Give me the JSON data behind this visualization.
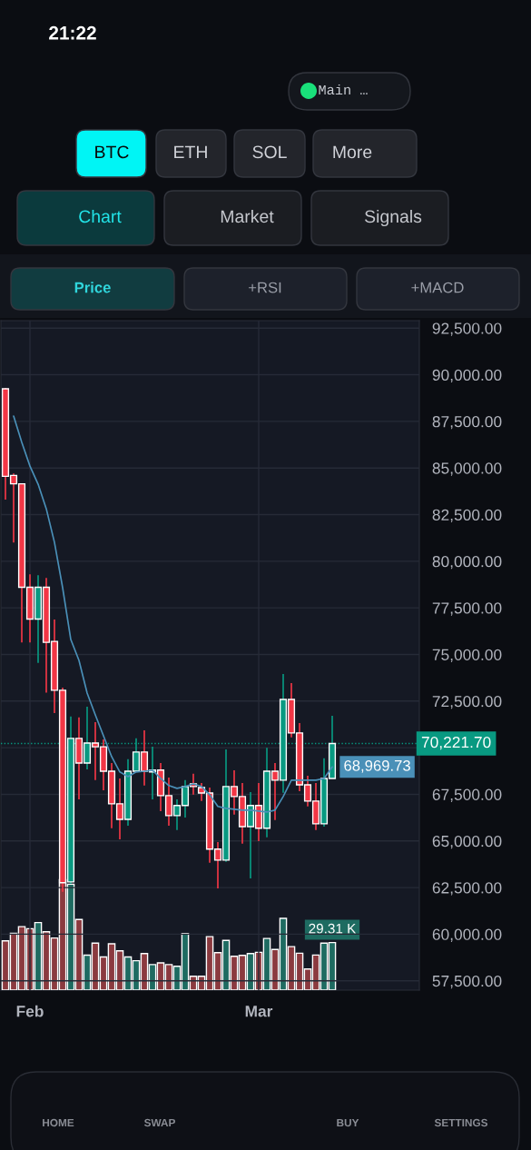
{
  "chart_data": [
    {
      "type": "candlestick",
      "categories": [
        null,
        null,
        null,
        "Feb",
        null,
        null,
        null,
        null,
        null,
        null,
        null,
        null,
        null,
        null,
        null,
        null,
        null,
        null,
        null,
        null,
        null,
        null,
        null,
        null,
        null,
        null,
        null,
        null,
        null,
        null,
        null,
        "Mar",
        null,
        null,
        null,
        null,
        null,
        null,
        null,
        null,
        null
      ],
      "ohlc": [
        [
          89250,
          89300,
          83300,
          84550
        ],
        [
          84600,
          84700,
          81000,
          84150
        ],
        [
          84150,
          84150,
          75650,
          78600
        ],
        [
          78600,
          79300,
          75650,
          76900
        ],
        [
          76900,
          79250,
          74550,
          78600
        ],
        [
          78600,
          79100,
          72950,
          75650
        ],
        [
          75700,
          76880,
          71860,
          73080
        ],
        [
          73080,
          73220,
          62270,
          62760
        ],
        [
          62800,
          71670,
          62700,
          70500
        ],
        [
          70500,
          71620,
          67230,
          69180
        ],
        [
          69180,
          72200,
          68840,
          70250
        ],
        [
          70250,
          71370,
          68260,
          70050
        ],
        [
          70050,
          70450,
          67720,
          68740
        ],
        [
          68740,
          69180,
          65680,
          66990
        ],
        [
          66990,
          68350,
          65090,
          66160
        ],
        [
          66160,
          69380,
          65820,
          68740
        ],
        [
          68740,
          70500,
          68700,
          69770
        ],
        [
          69770,
          70930,
          67970,
          68740
        ],
        [
          68700,
          70060,
          67230,
          68800
        ],
        [
          68800,
          69180,
          66600,
          67430
        ],
        [
          67430,
          68400,
          65820,
          66360
        ],
        [
          66360,
          67230,
          65580,
          66900
        ],
        [
          66900,
          68260,
          66260,
          67920
        ],
        [
          68060,
          68600,
          67480,
          67920
        ],
        [
          67860,
          68110,
          67140,
          67570
        ],
        [
          67570,
          67860,
          63830,
          64560
        ],
        [
          64560,
          64940,
          62460,
          63970
        ],
        [
          63970,
          69910,
          63880,
          67920
        ],
        [
          67920,
          68790,
          66410,
          67380
        ],
        [
          67380,
          68110,
          64850,
          65770
        ],
        [
          65770,
          67620,
          62990,
          66900
        ],
        [
          66900,
          68110,
          64990,
          65680
        ],
        [
          65680,
          69990,
          65190,
          68740
        ],
        [
          68740,
          69180,
          66120,
          68260
        ],
        [
          68260,
          73950,
          67580,
          72590
        ],
        [
          72590,
          73460,
          70550,
          70790
        ],
        [
          70790,
          71320,
          67670,
          68010
        ],
        [
          68010,
          68500,
          66850,
          67140
        ],
        [
          67140,
          68110,
          65580,
          65920
        ],
        [
          65920,
          69430,
          65770,
          68350
        ],
        [
          68350,
          71710,
          68350,
          70221.7
        ]
      ],
      "colors": [
        "#f23645",
        "#f23645",
        "#f23645",
        "#f23645",
        "#089981",
        "#f23645",
        "#f23645",
        "#f23645",
        "#089981",
        "#f23645",
        "#089981",
        "#f23645",
        "#f23645",
        "#f23645",
        "#f23645",
        "#089981",
        "#089981",
        "#f23645",
        "#089981",
        "#f23645",
        "#f23645",
        "#089981",
        "#089981",
        "#f23645",
        "#f23645",
        "#f23645",
        "#f23645",
        "#089981",
        "#f23645",
        "#f23645",
        "#089981",
        "#f23645",
        "#089981",
        "#f23645",
        "#089981",
        "#f23645",
        "#f23645",
        "#f23645",
        "#f23645",
        "#089981",
        "#089981"
      ],
      "series": [
        {
          "type": "line",
          "color": "#4a90b8",
          "marker": "none",
          "line_style": "solid",
          "values": [
            null,
            87780,
            86370,
            85100,
            84130,
            82810,
            81010,
            78580,
            75800,
            74680,
            72930,
            71760,
            70640,
            69520,
            68700,
            68450,
            68700,
            68740,
            68790,
            68350,
            67970,
            67820,
            67920,
            68060,
            67920,
            67480,
            66850,
            66750,
            66700,
            66650,
            66650,
            66600,
            66550,
            66650,
            67380,
            68260,
            68260,
            68260,
            68260,
            68350,
            68969.73
          ],
          "value_labels": [
            null,
            null,
            null,
            null,
            null,
            null,
            null,
            null,
            null,
            null,
            null,
            null,
            null,
            null,
            null,
            null,
            null,
            null,
            null,
            null,
            null,
            null,
            null,
            null,
            null,
            null,
            null,
            null,
            null,
            null,
            null,
            null,
            null,
            null,
            null,
            null,
            null,
            null,
            null,
            null,
            "68,969.73"
          ]
        }
      ],
      "ylim": [
        57000,
        92900
      ],
      "yticks": [
        {
          "value": 57500,
          "label": "57,500.00"
        },
        {
          "value": 60000,
          "label": "60,000.00"
        },
        {
          "value": 62500,
          "label": "62,500.00"
        },
        {
          "value": 65000,
          "label": "65,000.00"
        },
        {
          "value": 67500,
          "label": "67,500.00"
        },
        {
          "value": 70000,
          "label": null
        },
        {
          "value": 72500,
          "label": "72,500.00"
        },
        {
          "value": 75000,
          "label": "75,000.00"
        },
        {
          "value": 77500,
          "label": "77,500.00"
        },
        {
          "value": 80000,
          "label": "80,000.00"
        },
        {
          "value": 82500,
          "label": "82,500.00"
        },
        {
          "value": 85000,
          "label": "85,000.00"
        },
        {
          "value": 87500,
          "label": "87,500.00"
        },
        {
          "value": 90000,
          "label": "90,000.00"
        },
        {
          "value": 92500,
          "label": "92,500.00"
        }
      ],
      "ref_lines": [
        {
          "axis": "y",
          "value": 70221.7,
          "label": "70,221.70",
          "color": "#089981",
          "line_style": "dotted"
        }
      ],
      "grid": true,
      "legend": false
    },
    {
      "type": "bar",
      "categories": [
        null,
        null,
        null,
        null,
        null,
        null,
        null,
        null,
        null,
        null,
        null,
        null,
        null,
        null,
        null,
        null,
        null,
        null,
        null,
        null,
        null,
        null,
        null,
        null,
        null,
        null,
        null,
        null,
        null,
        null,
        null,
        null,
        null,
        null,
        null,
        null,
        null,
        null,
        null,
        null,
        null
      ],
      "colors": [
        "#8b3a3f",
        "#8b3a3f",
        "#8b3a3f",
        "#8b3a3f",
        "#1e6b61",
        "#8b3a3f",
        "#8b3a3f",
        "#8b3a3f",
        "#1e6b61",
        "#8b3a3f",
        "#1e6b61",
        "#8b3a3f",
        "#8b3a3f",
        "#8b3a3f",
        "#8b3a3f",
        "#1e6b61",
        "#1e6b61",
        "#8b3a3f",
        "#1e6b61",
        "#8b3a3f",
        "#8b3a3f",
        "#1e6b61",
        "#1e6b61",
        "#8b3a3f",
        "#8b3a3f",
        "#8b3a3f",
        "#8b3a3f",
        "#1e6b61",
        "#8b3a3f",
        "#8b3a3f",
        "#1e6b61",
        "#8b3a3f",
        "#1e6b61",
        "#8b3a3f",
        "#1e6b61",
        "#8b3a3f",
        "#8b3a3f",
        "#8b3a3f",
        "#8b3a3f",
        "#1e6b61",
        "#1e6b61"
      ],
      "values": [
        30.3,
        35.0,
        39.1,
        37.8,
        41.6,
        35.9,
        32.1,
        68.0,
        65.2,
        43.5,
        21.5,
        28.9,
        20.4,
        28.5,
        24.2,
        20.4,
        18.1,
        22.5,
        15.7,
        16.8,
        15.7,
        14.7,
        34.8,
        8.5,
        8.5,
        32.9,
        23.1,
        30.6,
        20.8,
        21.4,
        22.5,
        23.3,
        31.8,
        25.0,
        44.2,
        26.8,
        22.7,
        13.0,
        21.6,
        28.9,
        29.31
      ],
      "value_labels": [
        null,
        null,
        null,
        null,
        null,
        null,
        null,
        null,
        null,
        null,
        null,
        null,
        null,
        null,
        null,
        null,
        null,
        null,
        null,
        null,
        null,
        null,
        null,
        null,
        null,
        null,
        null,
        null,
        null,
        null,
        null,
        null,
        null,
        null,
        null,
        null,
        null,
        null,
        null,
        null,
        "29.31 K"
      ]
    },
    {
      "type": "other",
      "annotations": [
        "21:22",
        "Main …",
        "BTC",
        "ETH",
        "SOL",
        "More",
        "Chart",
        "Market",
        "Signals",
        "Price",
        "+RSI",
        "+MACD",
        "HOME",
        "SWAP",
        "BUY",
        "SETTINGS"
      ]
    }
  ]
}
